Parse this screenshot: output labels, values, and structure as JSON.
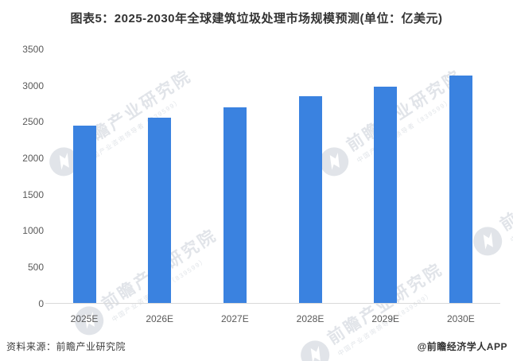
{
  "title": "图表5：2025-2030年全球建筑垃圾处理市场规模预测(单位：亿美元)",
  "chart_data": {
    "type": "bar",
    "title": "图表5：2025-2030年全球建筑垃圾处理市场规模预测(单位：亿美元)",
    "categories": [
      "2025E",
      "2026E",
      "2027E",
      "2028E",
      "2029E",
      "2030E"
    ],
    "values": [
      2450,
      2560,
      2700,
      2850,
      2990,
      3140
    ],
    "xlabel": "",
    "ylabel": "",
    "unit": "亿美元",
    "ylim": [
      0,
      3500
    ],
    "yticks": [
      0,
      500,
      1000,
      1500,
      2000,
      2500,
      3000,
      3500
    ],
    "grid": false,
    "legend": "none",
    "bar_color": "#3a82e0"
  },
  "footer": {
    "source": "资料来源：前瞻产业研究院",
    "credit": "@前瞻经济学人APP"
  },
  "watermark": {
    "text": "前瞻产业研究院",
    "subtext": "中国产业咨询领导者（839599）",
    "logo": "qianzhan-logo-icon"
  },
  "colors": {
    "bar": "#3a82e0",
    "axis_labels": "#595959",
    "title_text": "#333333",
    "axis_line": "#d9d9d9"
  }
}
